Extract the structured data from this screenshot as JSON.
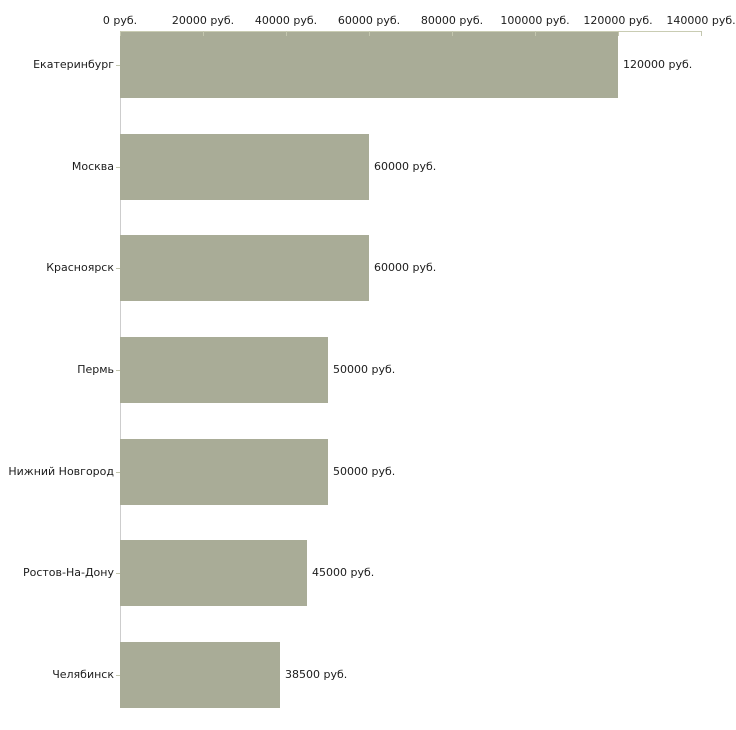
{
  "chart_data": {
    "type": "bar",
    "orientation": "horizontal",
    "title": "",
    "categories": [
      "Екатеринбург",
      "Москва",
      "Красноярск",
      "Пермь",
      "Нижний Новгород",
      "Ростов-На-Дону",
      "Челябинск"
    ],
    "values": [
      120000,
      60000,
      60000,
      50000,
      50000,
      45000,
      38500
    ],
    "value_labels": [
      "120000 руб.",
      "60000 руб.",
      "60000 руб.",
      "50000 руб.",
      "50000 руб.",
      "45000 руб.",
      "38500 руб."
    ],
    "x_axis": {
      "position": "top",
      "unit": "руб.",
      "xlim": [
        0,
        140000
      ],
      "tick_values": [
        0,
        20000,
        40000,
        60000,
        80000,
        100000,
        120000,
        140000
      ],
      "tick_labels": [
        "0 руб.",
        "20000 руб.",
        "40000 руб.",
        "60000 руб.",
        "80000 руб.",
        "100000 руб.",
        "120000 руб.",
        "140000 руб."
      ]
    },
    "grid": false,
    "legend": false
  },
  "colors": {
    "background": "#ffffff",
    "bar_fill": "#a9ac97",
    "axis_line": "#c9ccb3",
    "vertical_axis_line": "#cdcdcd",
    "tick_mark": "#c3c6ae",
    "text": "#1c1c1c"
  }
}
